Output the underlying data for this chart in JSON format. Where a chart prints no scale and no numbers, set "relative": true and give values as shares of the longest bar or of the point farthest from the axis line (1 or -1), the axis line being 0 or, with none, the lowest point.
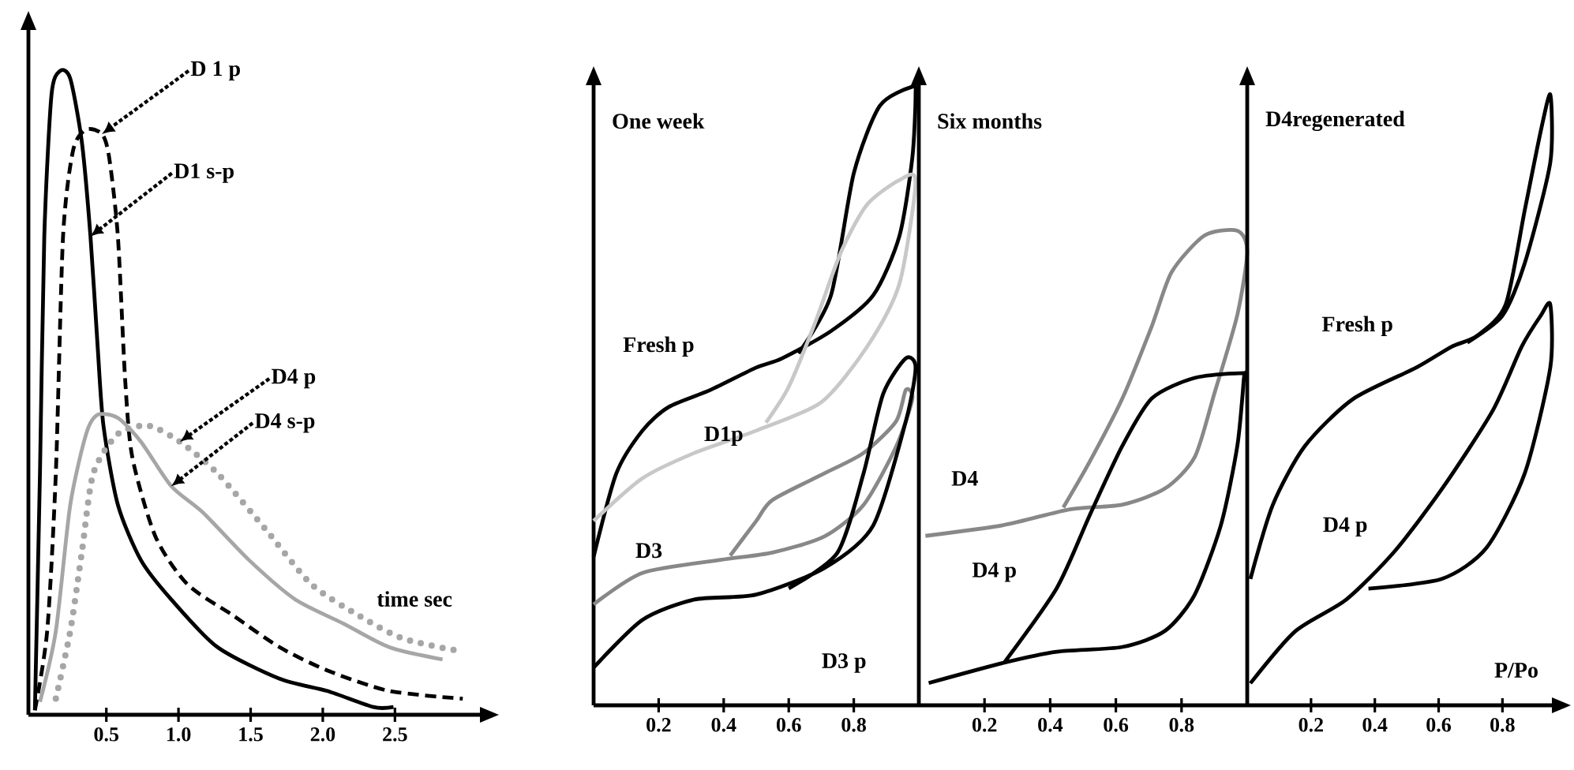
{
  "chart_data": [
    {
      "type": "line",
      "relative": true,
      "xlabel": "time sec",
      "xlim": [
        -0.04,
        3.1
      ],
      "xticks": [
        0.5,
        {
          "value": 1,
          "label": "1.0"
        },
        1.5,
        {
          "value": 2,
          "label": "2.0"
        },
        2.5
      ],
      "series": [
        {
          "color": "#000000",
          "line_style": "solid",
          "x": [
            0.005,
            0.04,
            0.07,
            0.12,
            0.18,
            0.25,
            0.33,
            0.39,
            0.44,
            0.48,
            0.58,
            0.74,
            0.95,
            1.27,
            1.7,
            2.03,
            2.35,
            2.49
          ],
          "values": [
            0.007,
            0.375,
            0.743,
            0.963,
            1.0,
            0.988,
            0.89,
            0.743,
            0.571,
            0.449,
            0.326,
            0.24,
            0.179,
            0.105,
            0.056,
            0.037,
            0.012,
            0.012
          ]
        },
        {
          "color": "#000000",
          "line_style": "dashed",
          "x": [
            0.005,
            0.09,
            0.15,
            0.2,
            0.27,
            0.36,
            0.47,
            0.52,
            0.58,
            0.63,
            0.68,
            0.84,
            1.06,
            1.38,
            1.7,
            2.03,
            2.46,
            2.97
          ],
          "values": [
            0.007,
            0.13,
            0.375,
            0.743,
            0.877,
            0.909,
            0.902,
            0.865,
            0.743,
            0.522,
            0.4,
            0.277,
            0.203,
            0.154,
            0.105,
            0.069,
            0.037,
            0.025
          ]
        },
        {
          "color": "#a6a6a6",
          "line_style": "solid",
          "x": [
            0.04,
            0.15,
            0.25,
            0.36,
            0.44,
            0.58,
            0.74,
            0.95,
            1.17,
            1.49,
            1.81,
            2.14,
            2.46,
            2.83
          ],
          "values": [
            0.02,
            0.13,
            0.326,
            0.436,
            0.466,
            0.461,
            0.424,
            0.355,
            0.314,
            0.24,
            0.179,
            0.142,
            0.105,
            0.086
          ]
        },
        {
          "color": "#a6a6a6",
          "line_style": "dotted",
          "x": [
            0.15,
            0.25,
            0.33,
            0.41,
            0.58,
            0.79,
            1.01,
            1.27,
            1.6,
            1.92,
            2.25,
            2.56,
            2.97
          ],
          "values": [
            0.025,
            0.13,
            0.252,
            0.375,
            0.436,
            0.449,
            0.424,
            0.375,
            0.289,
            0.203,
            0.154,
            0.118,
            0.098
          ]
        }
      ],
      "annotations": [
        {
          "text": "D 1 p",
          "x": 0.47,
          "y": 0.902
        },
        {
          "text": "D1 s-p",
          "x": 0.39,
          "y": 0.743
        },
        {
          "text": "D4 p",
          "x": 1.01,
          "y": 0.424
        },
        {
          "text": "D4 s-p",
          "x": 0.95,
          "y": 0.355
        }
      ]
    },
    {
      "type": "line",
      "relative": true,
      "title": "One week",
      "xlim": [
        0,
        1.0
      ],
      "xticks": [
        0.2,
        0.4,
        0.6,
        0.8
      ],
      "series": [
        {
          "color": "#000000",
          "x": [
            0.0,
            0.07,
            0.15,
            0.23,
            0.36,
            0.5,
            0.58,
            0.73,
            0.86,
            0.94,
            0.98,
            0.99,
            0.98,
            0.88,
            0.8,
            0.73,
            0.63
          ],
          "values": [
            0.24,
            0.375,
            0.444,
            0.482,
            0.51,
            0.546,
            0.561,
            0.605,
            0.663,
            0.758,
            0.885,
            0.987,
            1.0,
            0.969,
            0.86,
            0.663,
            0.569
          ]
        },
        {
          "color": "#c8c8c8",
          "x": [
            0.0,
            0.15,
            0.31,
            0.5,
            0.7,
            0.84,
            0.94,
            0.99,
            0.94,
            0.84,
            0.76,
            0.68,
            0.6,
            0.53
          ],
          "values": [
            0.298,
            0.367,
            0.408,
            0.444,
            0.49,
            0.579,
            0.681,
            0.847,
            0.849,
            0.809,
            0.732,
            0.617,
            0.515,
            0.457
          ]
        },
        {
          "color": "#888888",
          "x": [
            0.0,
            0.15,
            0.39,
            0.55,
            0.71,
            0.83,
            0.93,
            0.98,
            0.96,
            0.93,
            0.83,
            0.71,
            0.55,
            0.5,
            0.42
          ],
          "values": [
            0.163,
            0.214,
            0.235,
            0.247,
            0.273,
            0.324,
            0.418,
            0.495,
            0.51,
            0.459,
            0.408,
            0.375,
            0.332,
            0.298,
            0.242
          ]
        },
        {
          "color": "#000000",
          "x": [
            0.0,
            0.15,
            0.31,
            0.5,
            0.71,
            0.86,
            0.96,
            0.99,
            0.96,
            0.89,
            0.83,
            0.75,
            0.6
          ],
          "values": [
            0.061,
            0.138,
            0.171,
            0.179,
            0.222,
            0.291,
            0.459,
            0.546,
            0.561,
            0.503,
            0.375,
            0.247,
            0.189
          ]
        }
      ],
      "annotations": [
        "Fresh p",
        "D1p",
        "D3",
        "D3 p"
      ]
    },
    {
      "type": "line",
      "relative": true,
      "title": "Six months",
      "xlim": [
        0,
        1.0
      ],
      "xticks": [
        0.2,
        0.4,
        0.6,
        0.8
      ],
      "series": [
        {
          "color": "#888888",
          "x": [
            0.02,
            0.26,
            0.46,
            0.62,
            0.75,
            0.84,
            0.9,
            0.97,
            1.0,
            0.97,
            0.87,
            0.77,
            0.71,
            0.62,
            0.52,
            0.44
          ],
          "values": [
            0.357,
            0.38,
            0.413,
            0.423,
            0.457,
            0.523,
            0.657,
            0.823,
            0.957,
            1.0,
            0.99,
            0.913,
            0.8,
            0.647,
            0.513,
            0.417
          ]
        },
        {
          "color": "#000000",
          "x": [
            0.03,
            0.26,
            0.42,
            0.62,
            0.75,
            0.84,
            0.92,
            0.97,
            0.99,
            0.99,
            0.84,
            0.71,
            0.62,
            0.52,
            0.42,
            0.26
          ],
          "values": [
            0.047,
            0.09,
            0.113,
            0.123,
            0.157,
            0.233,
            0.38,
            0.547,
            0.69,
            0.7,
            0.69,
            0.647,
            0.547,
            0.4,
            0.247,
            0.09
          ]
        }
      ],
      "annotations": [
        "D4",
        "D4 p"
      ]
    },
    {
      "type": "line",
      "relative": true,
      "title": "D4regenerated",
      "xlabel": "P/Po",
      "xlim": [
        0,
        0.96
      ],
      "xticks": [
        0.2,
        0.4,
        0.6,
        0.8
      ],
      "series": [
        {
          "color": "#000000",
          "x": [
            0.01,
            0.08,
            0.18,
            0.33,
            0.53,
            0.64,
            0.72,
            0.81,
            0.87,
            0.92,
            0.95,
            0.95,
            0.87,
            0.8,
            0.69
          ],
          "values": [
            0.207,
            0.328,
            0.424,
            0.501,
            0.553,
            0.587,
            0.605,
            0.656,
            0.811,
            0.94,
            1.0,
            0.889,
            0.724,
            0.638,
            0.594
          ]
        },
        {
          "color": "#000000",
          "x": [
            0.01,
            0.15,
            0.31,
            0.46,
            0.61,
            0.77,
            0.86,
            0.92,
            0.95,
            0.95,
            0.87,
            0.75,
            0.61,
            0.38
          ],
          "values": [
            0.036,
            0.121,
            0.173,
            0.251,
            0.354,
            0.483,
            0.587,
            0.638,
            0.656,
            0.553,
            0.38,
            0.258,
            0.207,
            0.191
          ]
        }
      ],
      "annotations": [
        "Fresh p",
        "D4 p"
      ]
    }
  ]
}
